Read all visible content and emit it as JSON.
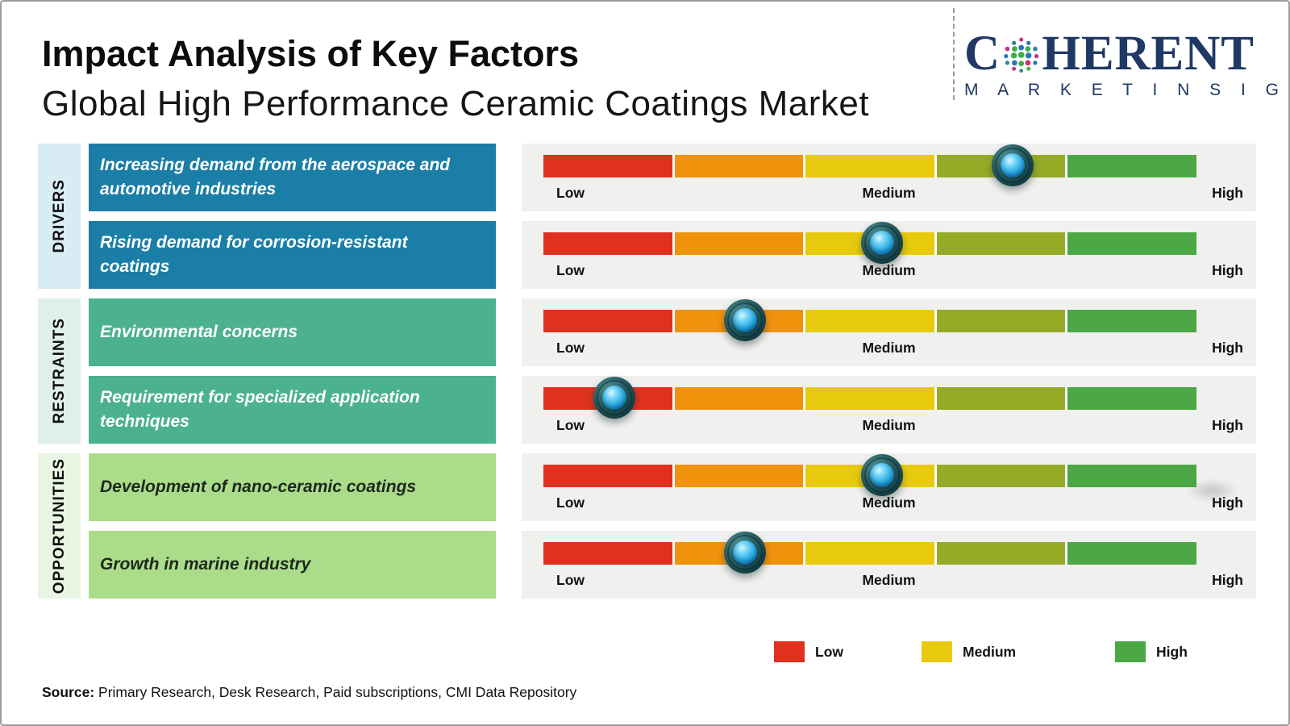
{
  "header": {
    "title": "Impact Analysis of Key Factors",
    "subtitle": "Global High Performance Ceramic Coatings Market"
  },
  "logo": {
    "brand_c": "C",
    "brand_rest": "HERENT",
    "tagline": "M A R K E T   I N S I G H T S",
    "navy": "#1f3864"
  },
  "chart_data": {
    "type": "impact-scale",
    "title": "Impact Analysis of Key Factors",
    "subtitle": "Global High Performance Ceramic Coatings Market",
    "scale_labels": [
      "Low",
      "Medium",
      "High"
    ],
    "scale_range": [
      0,
      1
    ],
    "segment_colors": [
      "#e0301e",
      "#f0920c",
      "#e7ca0d",
      "#95aa27",
      "#4ba845"
    ],
    "panel_color": "#f0f0ee",
    "groups": [
      {
        "name": "DRIVERS",
        "box_color": "#1b7ea6",
        "strip_color": "#d8ecf4",
        "text_color": "#ffffff",
        "factors": [
          {
            "label": "Increasing demand from the aerospace and automotive industries",
            "impact": 0.72,
            "impact_level": "Medium-High"
          },
          {
            "label": "Rising demand for corrosion-resistant coatings",
            "impact": 0.52,
            "impact_level": "Medium"
          }
        ]
      },
      {
        "name": "RESTRAINTS",
        "box_color": "#4cb18f",
        "strip_color": "#def0e9",
        "text_color": "#ffffff",
        "factors": [
          {
            "label": "Environmental concerns",
            "impact": 0.31,
            "impact_level": "Low-Medium"
          },
          {
            "label": "Requirement for specialized application techniques",
            "impact": 0.11,
            "impact_level": "Low"
          }
        ]
      },
      {
        "name": "OPPORTUNITIES",
        "box_color": "#abdc8a",
        "strip_color": "#e8f5e2",
        "text_color": "#1c281c",
        "factors": [
          {
            "label": "Development of nano-ceramic coatings",
            "impact": 0.52,
            "impact_level": "Medium"
          },
          {
            "label": "Growth in marine industry",
            "impact": 0.31,
            "impact_level": "Low-Medium"
          }
        ]
      }
    ]
  },
  "legend": {
    "items": [
      {
        "label": "Low",
        "color": "#e0301e"
      },
      {
        "label": "Medium",
        "color": "#e7ca0d"
      },
      {
        "label": "High",
        "color": "#4ba845"
      }
    ]
  },
  "source": {
    "prefix": "Source:",
    "text": " Primary Research, Desk Research, Paid subscriptions, CMI Data Repository"
  }
}
